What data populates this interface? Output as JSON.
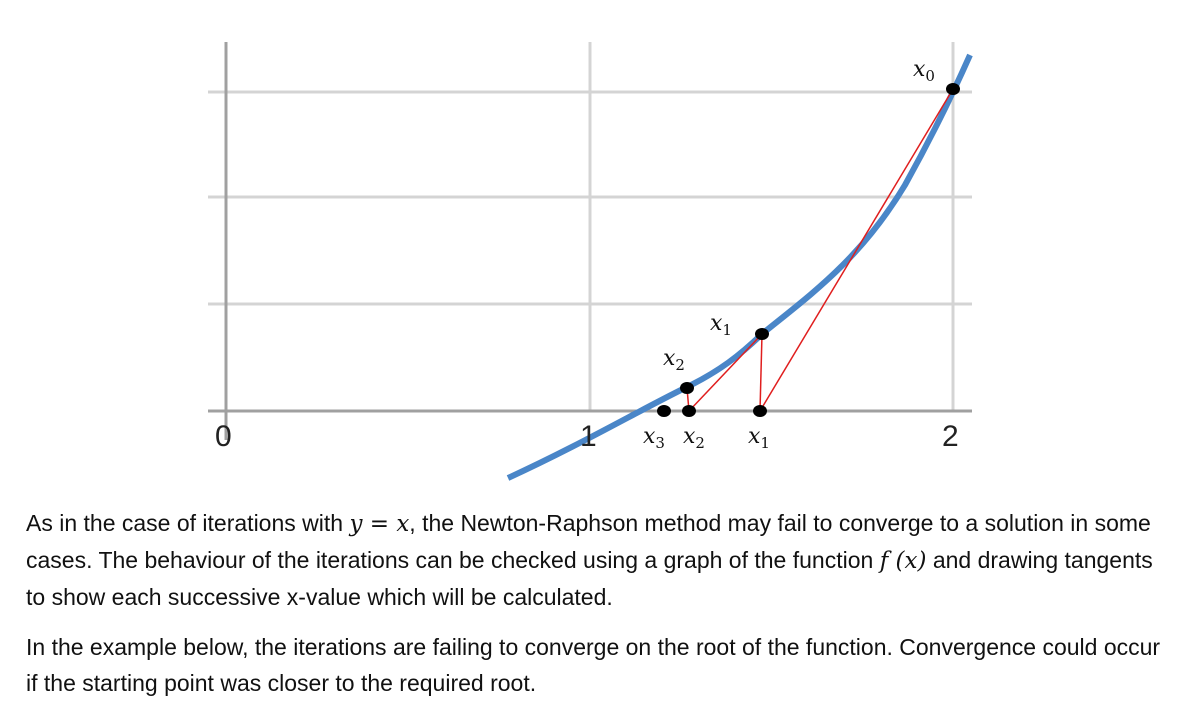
{
  "graph": {
    "x_ticks": [
      "0",
      "1",
      "2"
    ],
    "point_labels": {
      "x0": {
        "base": "x",
        "sub": "0"
      },
      "x1": {
        "base": "x",
        "sub": "1"
      },
      "x2": {
        "base": "x",
        "sub": "2"
      },
      "x3": {
        "base": "x",
        "sub": "3"
      }
    },
    "colors": {
      "curve": "#4a86c8",
      "tangent": "#e01e1e",
      "grid": "#d4d4d4",
      "axis": "#a0a0a0",
      "point": "#000000"
    }
  },
  "text": {
    "p1_a": "As in the case of iterations with ",
    "p1_math1": "y = x",
    "p1_b": ", the Newton-Raphson method may fail to converge to a solution in some cases.  The behaviour of the iterations can be checked using a graph of the function ",
    "p1_math2": "f (x)",
    "p1_c": "  and drawing tangents to show each successive x-value which will be calculated.",
    "p2": "In the example below, the iterations are failing to converge on the root of the function. Convergence could occur if the starting point was closer to the required root."
  }
}
